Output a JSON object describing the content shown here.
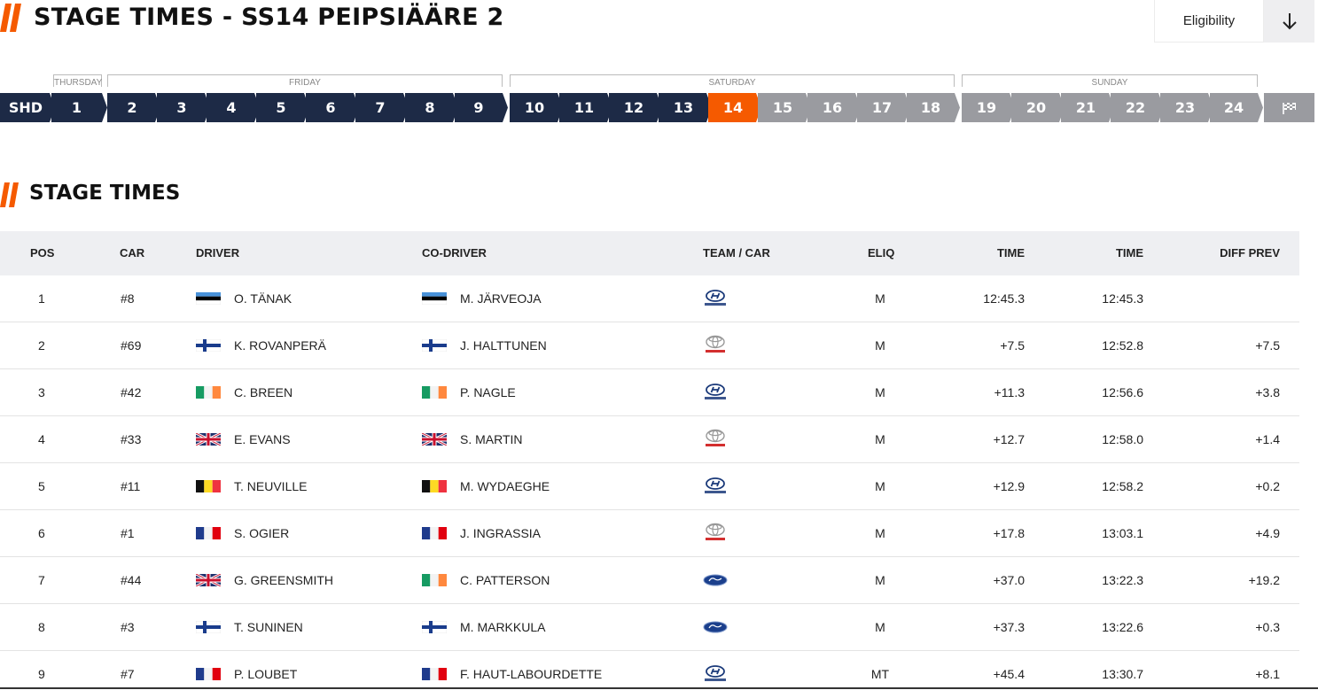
{
  "header": {
    "title": "STAGE TIMES - SS14 PEIPSIÄÄRE 2",
    "eligibility_label": "Eligibility",
    "accent_color": "#f55a00"
  },
  "days": [
    {
      "label": "THURSDAY"
    },
    {
      "label": "FRIDAY"
    },
    {
      "label": "SATURDAY"
    },
    {
      "label": "SUNDAY"
    }
  ],
  "stages": [
    {
      "label": "SHD",
      "status": "done"
    },
    {
      "label": "1",
      "status": "done"
    },
    {
      "label": "2",
      "status": "done"
    },
    {
      "label": "3",
      "status": "done"
    },
    {
      "label": "4",
      "status": "done"
    },
    {
      "label": "5",
      "status": "done"
    },
    {
      "label": "6",
      "status": "done"
    },
    {
      "label": "7",
      "status": "done"
    },
    {
      "label": "8",
      "status": "done"
    },
    {
      "label": "9",
      "status": "done"
    },
    {
      "label": "10",
      "status": "done"
    },
    {
      "label": "11",
      "status": "done"
    },
    {
      "label": "12",
      "status": "done"
    },
    {
      "label": "13",
      "status": "done"
    },
    {
      "label": "14",
      "status": "current"
    },
    {
      "label": "15",
      "status": "future"
    },
    {
      "label": "16",
      "status": "future"
    },
    {
      "label": "17",
      "status": "future"
    },
    {
      "label": "18",
      "status": "future"
    },
    {
      "label": "19",
      "status": "future"
    },
    {
      "label": "20",
      "status": "future"
    },
    {
      "label": "21",
      "status": "future"
    },
    {
      "label": "22",
      "status": "future"
    },
    {
      "label": "23",
      "status": "future"
    },
    {
      "label": "24",
      "status": "future"
    },
    {
      "label": "",
      "status": "future",
      "icon": "finish-flag-icon"
    }
  ],
  "section": {
    "title": "STAGE TIMES"
  },
  "table": {
    "headers": {
      "pos": "POS",
      "car": "CAR",
      "driver": "DRIVER",
      "codriver": "CO-DRIVER",
      "team": "TEAM / CAR",
      "eliq": "ELIQ",
      "time": "TIME",
      "time2": "TIME",
      "diff": "DIFF PREV"
    },
    "rows": [
      {
        "pos": "1",
        "car": "#8",
        "driver": "O. TÄNAK",
        "codriver": "M. JÄRVEOJA",
        "flag_d": "est",
        "flag_c": "est",
        "team": "hyundai",
        "eliq": "M",
        "time": "12:45.3",
        "time2": "12:45.3",
        "diff": ""
      },
      {
        "pos": "2",
        "car": "#69",
        "driver": "K. ROVANPERÄ",
        "codriver": "J. HALTTUNEN",
        "flag_d": "fin",
        "flag_c": "fin",
        "team": "toyota",
        "eliq": "M",
        "time": "+7.5",
        "time2": "12:52.8",
        "diff": "+7.5"
      },
      {
        "pos": "3",
        "car": "#42",
        "driver": "C. BREEN",
        "codriver": "P. NAGLE",
        "flag_d": "irl",
        "flag_c": "irl",
        "team": "hyundai",
        "eliq": "M",
        "time": "+11.3",
        "time2": "12:56.6",
        "diff": "+3.8"
      },
      {
        "pos": "4",
        "car": "#33",
        "driver": "E. EVANS",
        "codriver": "S. MARTIN",
        "flag_d": "gbr",
        "flag_c": "gbr",
        "team": "toyota",
        "eliq": "M",
        "time": "+12.7",
        "time2": "12:58.0",
        "diff": "+1.4"
      },
      {
        "pos": "5",
        "car": "#11",
        "driver": "T. NEUVILLE",
        "codriver": "M. WYDAEGHE",
        "flag_d": "bel",
        "flag_c": "bel",
        "team": "hyundai",
        "eliq": "M",
        "time": "+12.9",
        "time2": "12:58.2",
        "diff": "+0.2"
      },
      {
        "pos": "6",
        "car": "#1",
        "driver": "S. OGIER",
        "codriver": "J. INGRASSIA",
        "flag_d": "fra",
        "flag_c": "fra",
        "team": "toyota",
        "eliq": "M",
        "time": "+17.8",
        "time2": "13:03.1",
        "diff": "+4.9"
      },
      {
        "pos": "7",
        "car": "#44",
        "driver": "G. GREENSMITH",
        "codriver": "C. PATTERSON",
        "flag_d": "gbr",
        "flag_c": "irl",
        "team": "ford",
        "eliq": "M",
        "time": "+37.0",
        "time2": "13:22.3",
        "diff": "+19.2"
      },
      {
        "pos": "8",
        "car": "#3",
        "driver": "T. SUNINEN",
        "codriver": "M. MARKKULA",
        "flag_d": "fin",
        "flag_c": "fin",
        "team": "ford",
        "eliq": "M",
        "time": "+37.3",
        "time2": "13:22.6",
        "diff": "+0.3"
      },
      {
        "pos": "9",
        "car": "#7",
        "driver": "P. LOUBET",
        "codriver": "F. HAUT-LABOURDETTE",
        "flag_d": "fra",
        "flag_c": "fra",
        "team": "hyundai",
        "eliq": "MT",
        "time": "+45.4",
        "time2": "13:30.7",
        "diff": "+8.1"
      }
    ]
  }
}
